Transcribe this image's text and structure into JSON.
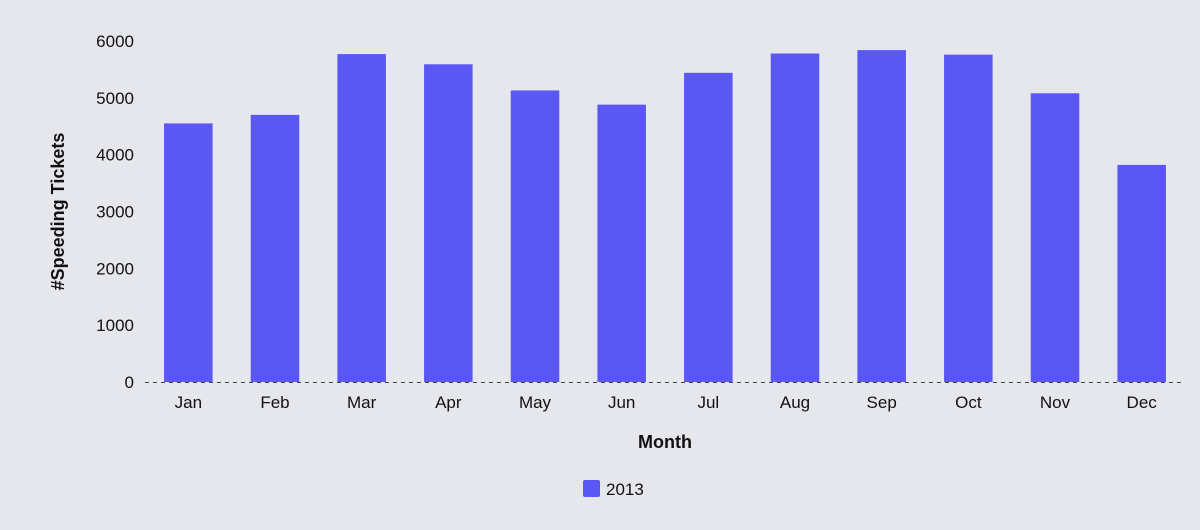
{
  "chart_data": {
    "type": "bar",
    "title": "",
    "xlabel": "Month",
    "ylabel": "#Speeding Tickets",
    "categories": [
      "Jan",
      "Feb",
      "Mar",
      "Apr",
      "May",
      "Jun",
      "Jul",
      "Aug",
      "Sep",
      "Oct",
      "Nov",
      "Dec"
    ],
    "series": [
      {
        "name": "2013",
        "color": "#5a57f5",
        "values": [
          4550,
          4700,
          5770,
          5590,
          5130,
          4880,
          5440,
          5780,
          5840,
          5760,
          5080,
          3820
        ]
      }
    ],
    "ylim": [
      0,
      6000
    ],
    "yticks": [
      "0",
      "1000",
      "2000",
      "3000",
      "4000",
      "5000",
      "6000"
    ],
    "grid": false,
    "baseline_style": "dashed",
    "legend_position": "bottom-center"
  }
}
